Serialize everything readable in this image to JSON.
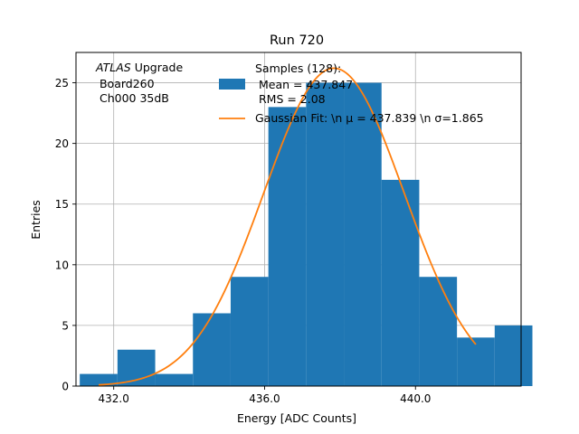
{
  "chart_data": {
    "type": "bar",
    "title": "Run 720",
    "xlabel": "Energy [ADC Counts]",
    "ylabel": "Entries",
    "xlim": [
      431.0,
      442.8
    ],
    "ylim": [
      0,
      27.5
    ],
    "grid": true,
    "x_ticks": [
      432.0,
      436.0,
      440.0
    ],
    "x_tick_labels": [
      "432.0",
      "436.0",
      "440.0"
    ],
    "y_ticks": [
      0,
      5,
      10,
      15,
      20,
      25
    ],
    "y_tick_labels": [
      "0",
      "5",
      "10",
      "15",
      "20",
      "25"
    ],
    "bin_width": 1.0,
    "bins": [
      {
        "left": 431.1,
        "count": 1
      },
      {
        "left": 432.1,
        "count": 3
      },
      {
        "left": 433.1,
        "count": 1
      },
      {
        "left": 434.1,
        "count": 6
      },
      {
        "left": 435.1,
        "count": 9
      },
      {
        "left": 436.1,
        "count": 23
      },
      {
        "left": 437.1,
        "count": 25
      },
      {
        "left": 438.1,
        "count": 25
      },
      {
        "left": 439.1,
        "count": 17
      },
      {
        "left": 440.1,
        "count": 9
      },
      {
        "left": 441.1,
        "count": 4
      },
      {
        "left": 442.1,
        "count": 5
      }
    ],
    "fit": {
      "type": "gaussian",
      "mean": 437.839,
      "sigma": 1.865,
      "amplitude": 26.2,
      "x_range": [
        431.6,
        441.6
      ]
    },
    "atlas_label": {
      "italic_part": "ATLAS",
      "rest": " Upgrade",
      "line2": " Board260",
      "line3": " Ch000 35dB"
    },
    "legend": {
      "position": "top-center",
      "samples_line1": "Samples (128):",
      "samples_line2": " Mean = 437.847",
      "samples_line3": " RMS = 2.08",
      "fit_label": "Gaussian Fit: \\n μ = 437.839 \\n σ=1.865"
    },
    "colors": {
      "bars": "#1f77b4",
      "fit": "#ff7f0e",
      "grid": "#b0b0b0",
      "axes": "#000000"
    }
  }
}
